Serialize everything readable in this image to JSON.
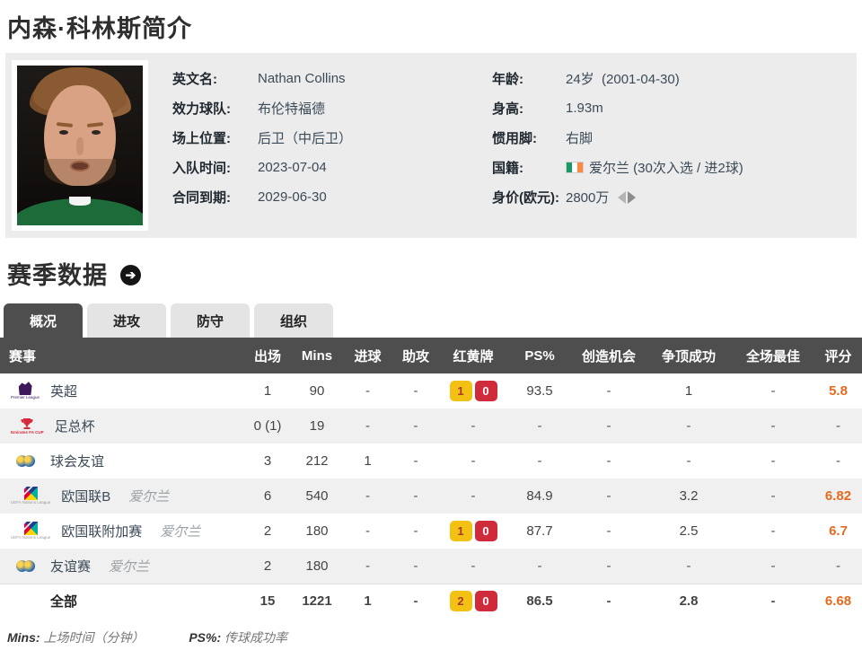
{
  "page": {
    "title": "内森·科林斯简介"
  },
  "profile": {
    "fields_left": [
      {
        "label": "英文名:",
        "value": "Nathan Collins"
      },
      {
        "label": "效力球队:",
        "value": "布伦特福德"
      },
      {
        "label": "场上位置:",
        "value": "后卫（中后卫）"
      },
      {
        "label": "入队时间:",
        "value": "2023-07-04"
      },
      {
        "label": "合同到期:",
        "value": "2029-06-30"
      }
    ],
    "fields_right": [
      {
        "label": "年龄:",
        "value": "24岁  (2001-04-30)"
      },
      {
        "label": "身高:",
        "value": "1.93m"
      },
      {
        "label": "惯用脚:",
        "value": "右脚"
      },
      {
        "label": "国籍:",
        "value": "爱尔兰 (30次入选 / 进2球)",
        "icon": "ireland-flag"
      },
      {
        "label": "身价(欧元):",
        "value": "2800万",
        "icon": "value-trend-arrows"
      }
    ]
  },
  "season": {
    "title": "赛季数据"
  },
  "tabs": [
    {
      "id": "overview",
      "label": "概况",
      "active": true
    },
    {
      "id": "attack",
      "label": "进攻",
      "active": false
    },
    {
      "id": "defense",
      "label": "防守",
      "active": false
    },
    {
      "id": "organization",
      "label": "组织",
      "active": false
    }
  ],
  "table": {
    "headers": [
      "赛事",
      "出场",
      "Mins",
      "进球",
      "助攻",
      "红黄牌",
      "PS%",
      "创造机会",
      "争顶成功",
      "全场最佳",
      "评分"
    ],
    "rows": [
      {
        "icon": "premier-league",
        "name": "英超",
        "suffix": "",
        "stats1": [
          "1",
          "90",
          "-",
          "-"
        ],
        "cards": {
          "yellow": "1",
          "red": "0"
        },
        "stats2": [
          "93.5",
          "-",
          "1",
          "-"
        ],
        "rating": "5.8"
      },
      {
        "icon": "fa-cup",
        "name": "足总杯",
        "suffix": "",
        "stats1": [
          "0 (1)",
          "19",
          "-",
          "-"
        ],
        "cards": null,
        "stats2": [
          "-",
          "-",
          "-",
          "-"
        ],
        "rating": "-"
      },
      {
        "icon": "club-friendly-globes",
        "name": "球会友谊",
        "suffix": "",
        "stats1": [
          "3",
          "212",
          "1",
          "-"
        ],
        "cards": null,
        "stats2": [
          "-",
          "-",
          "-",
          "-"
        ],
        "rating": "-"
      },
      {
        "icon": "nations-league",
        "name": "欧国联B",
        "suffix": "爱尔兰",
        "stats1": [
          "6",
          "540",
          "-",
          "-"
        ],
        "cards": null,
        "stats2": [
          "84.9",
          "-",
          "3.2",
          "-"
        ],
        "rating": "6.82"
      },
      {
        "icon": "nations-league",
        "name": "欧国联附加赛",
        "suffix": "爱尔兰",
        "stats1": [
          "2",
          "180",
          "-",
          "-"
        ],
        "cards": {
          "yellow": "1",
          "red": "0"
        },
        "stats2": [
          "87.7",
          "-",
          "2.5",
          "-"
        ],
        "rating": "6.7"
      },
      {
        "icon": "club-friendly-globes",
        "name": "友谊赛",
        "suffix": "爱尔兰",
        "stats1": [
          "2",
          "180",
          "-",
          "-"
        ],
        "cards": null,
        "stats2": [
          "-",
          "-",
          "-",
          "-"
        ],
        "rating": "-"
      }
    ],
    "total_row": {
      "name": "全部",
      "stats1": [
        "15",
        "1221",
        "1",
        "-"
      ],
      "cards": {
        "yellow": "2",
        "red": "0"
      },
      "stats2": [
        "86.5",
        "-",
        "2.8",
        "-"
      ],
      "rating": "6.68"
    }
  },
  "footnotes": [
    {
      "term": "Mins:",
      "desc": "上场时间（分钟）"
    },
    {
      "term": "PS%:",
      "desc": "传球成功率"
    }
  ],
  "icon_captions": {
    "premier_league": "Premier League",
    "fa_cup": "Emirates FA CUP",
    "nations_league": "UEFA Nations League"
  },
  "colors": {
    "rating_orange": "#e66a1e",
    "yellow_card_bg": "#f2c113",
    "yellow_card_text": "#a8372f",
    "red_card_bg": "#cf2b3a",
    "red_card_text": "#ffffff",
    "table_header_bg": "#4e4e4e",
    "active_tab_bg": "#4e4e4e",
    "inactive_tab_bg": "#e4e4e4",
    "row_alt_bg": "#f0f0f0",
    "panel_bg": "#ececec",
    "pl_purple": "#3d195b",
    "fa_cup_red": "#d6293a",
    "flag_green": "#169b62",
    "flag_orange": "#ff883e"
  }
}
